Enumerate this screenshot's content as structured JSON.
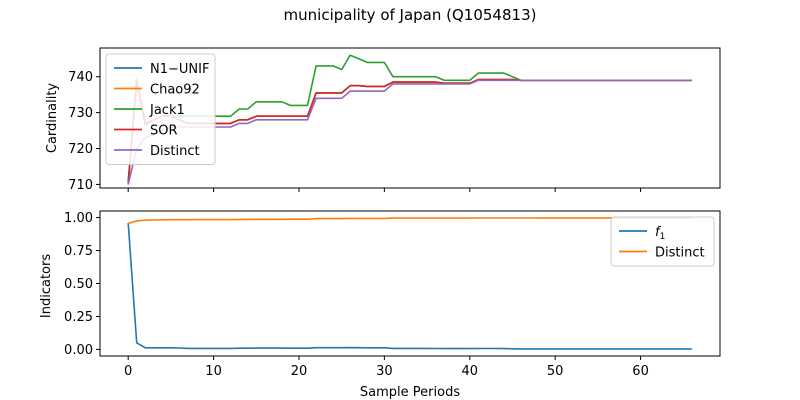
{
  "figure": {
    "title": "municipality of Japan (Q1054813)",
    "xlabel": "Sample Periods"
  },
  "chart_data": [
    {
      "type": "line",
      "ylabel": "Cardinality",
      "xlim": [
        -3.3,
        69.3
      ],
      "ylim": [
        709,
        748
      ],
      "yticks": [
        710,
        720,
        730,
        740
      ],
      "xticks": [
        0,
        10,
        20,
        30,
        40,
        50,
        60
      ],
      "legend": "top-left",
      "grid": false,
      "x": [
        0,
        1,
        2,
        3,
        4,
        5,
        6,
        7,
        8,
        9,
        10,
        11,
        12,
        13,
        14,
        15,
        16,
        17,
        18,
        19,
        20,
        21,
        22,
        23,
        24,
        25,
        26,
        27,
        28,
        29,
        30,
        31,
        32,
        33,
        34,
        35,
        36,
        37,
        38,
        39,
        40,
        41,
        42,
        43,
        44,
        45,
        46,
        47,
        48,
        49,
        50,
        51,
        52,
        53,
        54,
        55,
        56,
        57,
        58,
        59,
        60,
        61,
        62,
        63,
        64,
        65,
        66
      ],
      "series": [
        {
          "name": "N1−UNIF",
          "color": "#1f77b4",
          "values": [
            710,
            739,
            727,
            728,
            729,
            729,
            728,
            727,
            727,
            727,
            727,
            727,
            727,
            728,
            728,
            729,
            729,
            729,
            729,
            729,
            729,
            729,
            735.5,
            735.5,
            735.5,
            735.5,
            737.5,
            737.5,
            737.3,
            737.3,
            737.3,
            738.5,
            738.5,
            738.5,
            738.5,
            738.5,
            738.5,
            738.2,
            738.2,
            738.2,
            738.2,
            739.2,
            739.2,
            739.2,
            739.2,
            739.2,
            739,
            739,
            739,
            739,
            739,
            739,
            739,
            739,
            739,
            739,
            739,
            739,
            739,
            739,
            739,
            739,
            739,
            739,
            739,
            739,
            739
          ]
        },
        {
          "name": "Chao92",
          "color": "#ff7f0e",
          "values": [
            710,
            739.5,
            727,
            728,
            729,
            729,
            728,
            727,
            727,
            727,
            727,
            727,
            727,
            728,
            728,
            729,
            729,
            729,
            729,
            729,
            729,
            729,
            735.5,
            735.5,
            735.5,
            735.5,
            737.5,
            737.5,
            737.3,
            737.3,
            737.3,
            738.5,
            738.5,
            738.5,
            738.5,
            738.5,
            738.5,
            738.2,
            738.2,
            738.2,
            738.2,
            739.2,
            739.2,
            739.2,
            739.2,
            739.2,
            739,
            739,
            739,
            739,
            739,
            739,
            739,
            739,
            739,
            739,
            739,
            739,
            739,
            739,
            739,
            739,
            739,
            739,
            739,
            739,
            739
          ]
        },
        {
          "name": "Jack1",
          "color": "#2ca02c",
          "values": [
            711,
            738.5,
            726.5,
            728,
            729,
            729,
            729,
            729,
            729,
            729,
            729,
            729,
            729,
            731,
            731,
            733,
            733,
            733,
            733,
            732,
            732,
            732,
            743,
            743,
            743,
            742,
            746,
            745,
            744,
            744,
            744,
            740,
            740,
            740,
            740,
            740,
            740,
            739,
            739,
            739,
            739,
            741,
            741,
            741,
            741,
            740,
            739,
            739,
            739,
            739,
            739,
            739,
            739,
            739,
            739,
            739,
            739,
            739,
            739,
            739,
            739,
            739,
            739,
            739,
            739,
            739,
            739
          ]
        },
        {
          "name": "SOR",
          "color": "#d62728",
          "values": [
            710,
            739,
            727,
            728,
            729,
            729,
            728,
            727,
            727,
            727,
            727,
            727,
            727,
            728,
            728,
            729,
            729,
            729,
            729,
            729,
            729,
            729,
            735.5,
            735.5,
            735.5,
            735.5,
            737.5,
            737.5,
            737.3,
            737.3,
            737.3,
            738.5,
            738.5,
            738.5,
            738.5,
            738.5,
            738.5,
            738.2,
            738.2,
            738.2,
            738.2,
            739.2,
            739.2,
            739.2,
            739.2,
            739.2,
            739,
            739,
            739,
            739,
            739,
            739,
            739,
            739,
            739,
            739,
            739,
            739,
            739,
            739,
            739,
            739,
            739,
            739,
            739,
            739,
            739
          ]
        },
        {
          "name": "Distinct",
          "color": "#9467bd",
          "values": [
            710,
            720,
            723,
            724,
            725,
            726,
            726,
            726,
            726,
            726,
            726,
            726,
            726,
            727,
            727,
            728,
            728,
            728,
            728,
            728,
            728,
            728,
            734,
            734,
            734,
            734,
            736,
            736,
            736,
            736,
            736,
            738,
            738,
            738,
            738,
            738,
            738,
            738,
            738,
            738,
            738,
            739,
            739,
            739,
            739,
            739,
            739,
            739,
            739,
            739,
            739,
            739,
            739,
            739,
            739,
            739,
            739,
            739,
            739,
            739,
            739,
            739,
            739,
            739,
            739,
            739,
            739
          ]
        }
      ]
    },
    {
      "type": "line",
      "ylabel": "Indicators",
      "xlim": [
        -3.3,
        69.3
      ],
      "ylim": [
        -0.05,
        1.05
      ],
      "yticks": [
        "0.00",
        "0.25",
        "0.50",
        "0.75",
        "1.00"
      ],
      "ytick_values": [
        0,
        0.25,
        0.5,
        0.75,
        1.0
      ],
      "xticks": [
        0,
        10,
        20,
        30,
        40,
        50,
        60
      ],
      "legend": "top-right",
      "grid": false,
      "x": [
        0,
        1,
        2,
        3,
        4,
        5,
        6,
        7,
        8,
        9,
        10,
        11,
        12,
        13,
        14,
        15,
        16,
        17,
        18,
        19,
        20,
        21,
        22,
        23,
        24,
        25,
        26,
        27,
        28,
        29,
        30,
        31,
        32,
        33,
        34,
        35,
        36,
        37,
        38,
        39,
        40,
        41,
        42,
        43,
        44,
        45,
        46,
        47,
        48,
        49,
        50,
        51,
        52,
        53,
        54,
        55,
        56,
        57,
        58,
        59,
        60,
        61,
        62,
        63,
        64,
        65,
        66
      ],
      "series": [
        {
          "name": "f",
          "name_sub": "1",
          "color": "#1f77b4",
          "values": [
            0.96,
            0.05,
            0.012,
            0.012,
            0.012,
            0.012,
            0.011,
            0.008,
            0.008,
            0.008,
            0.008,
            0.008,
            0.008,
            0.009,
            0.009,
            0.01,
            0.01,
            0.01,
            0.01,
            0.009,
            0.009,
            0.009,
            0.013,
            0.013,
            0.013,
            0.013,
            0.014,
            0.013,
            0.012,
            0.012,
            0.012,
            0.008,
            0.008,
            0.008,
            0.008,
            0.008,
            0.007,
            0.006,
            0.006,
            0.006,
            0.006,
            0.007,
            0.007,
            0.007,
            0.006,
            0.005,
            0.004,
            0.004,
            0.004,
            0.004,
            0.004,
            0.004,
            0.004,
            0.004,
            0.004,
            0.004,
            0.004,
            0.004,
            0.004,
            0.004,
            0.004,
            0.004,
            0.004,
            0.004,
            0.004,
            0.004,
            0.004
          ]
        },
        {
          "name": "Distinct",
          "color": "#ff7f0e",
          "values": [
            0.955,
            0.975,
            0.98,
            0.982,
            0.983,
            0.984,
            0.984,
            0.984,
            0.985,
            0.985,
            0.985,
            0.985,
            0.985,
            0.986,
            0.986,
            0.987,
            0.987,
            0.987,
            0.987,
            0.988,
            0.988,
            0.988,
            0.992,
            0.992,
            0.992,
            0.992,
            0.994,
            0.994,
            0.994,
            0.994,
            0.994,
            0.996,
            0.996,
            0.996,
            0.996,
            0.996,
            0.996,
            0.996,
            0.996,
            0.996,
            0.996,
            0.997,
            0.997,
            0.997,
            0.997,
            0.997,
            0.997,
            0.997,
            0.998,
            0.998,
            0.998,
            0.998,
            0.998,
            0.998,
            0.998,
            0.998,
            0.998,
            0.998,
            0.998,
            0.998,
            0.998,
            0.998,
            0.998,
            0.998,
            0.998,
            0.998,
            0.998
          ]
        }
      ]
    }
  ]
}
